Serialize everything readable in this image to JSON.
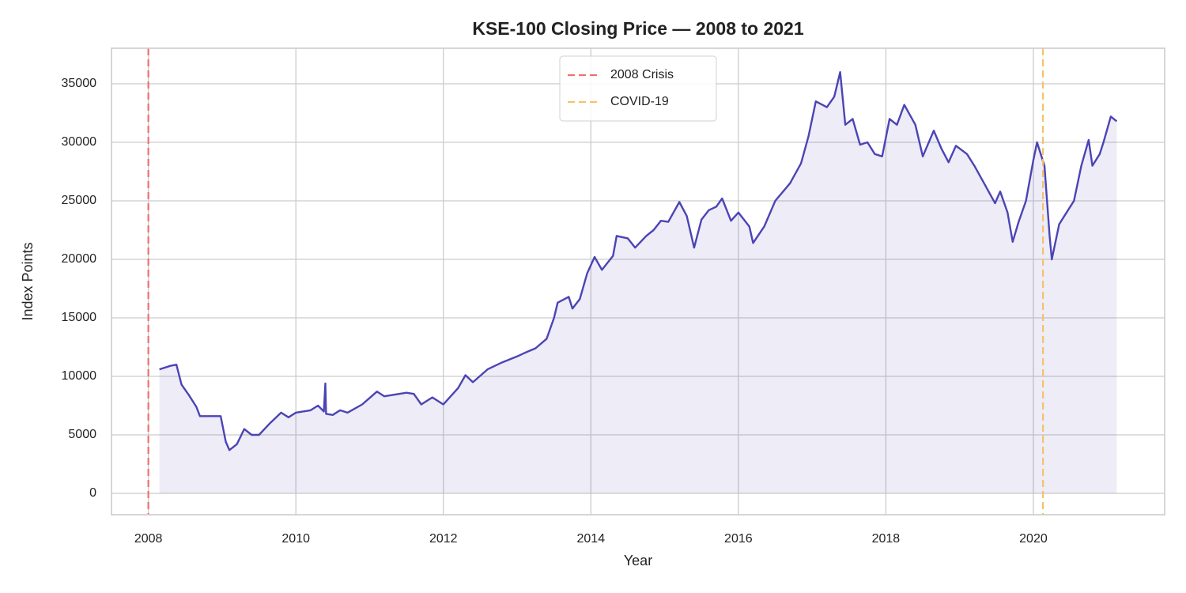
{
  "chart_data": {
    "type": "line",
    "title": "KSE-100 Closing Price — 2008 to 2021",
    "xlabel": "Year",
    "ylabel": "Index Points",
    "x": [
      2008.15,
      2008.3,
      2008.38,
      2008.45,
      2008.55,
      2008.65,
      2008.7,
      2008.98,
      2009.05,
      2009.1,
      2009.2,
      2009.3,
      2009.4,
      2009.5,
      2009.65,
      2009.8,
      2009.9,
      2010.0,
      2010.2,
      2010.3,
      2010.38,
      2010.4,
      2010.41,
      2010.5,
      2010.6,
      2010.7,
      2010.9,
      2011.1,
      2011.2,
      2011.5,
      2011.6,
      2011.7,
      2011.85,
      2012.0,
      2012.2,
      2012.3,
      2012.4,
      2012.6,
      2012.8,
      2013.0,
      2013.1,
      2013.25,
      2013.4,
      2013.5,
      2013.55,
      2013.7,
      2013.75,
      2013.85,
      2013.95,
      2014.05,
      2014.15,
      2014.3,
      2014.35,
      2014.5,
      2014.6,
      2014.75,
      2014.85,
      2014.95,
      2015.05,
      2015.2,
      2015.3,
      2015.4,
      2015.5,
      2015.6,
      2015.7,
      2015.78,
      2015.9,
      2016.0,
      2016.15,
      2016.2,
      2016.35,
      2016.5,
      2016.7,
      2016.85,
      2016.95,
      2017.05,
      2017.2,
      2017.3,
      2017.38,
      2017.45,
      2017.55,
      2017.65,
      2017.75,
      2017.85,
      2017.95,
      2018.05,
      2018.15,
      2018.25,
      2018.4,
      2018.5,
      2018.65,
      2018.75,
      2018.85,
      2018.95,
      2019.1,
      2019.2,
      2019.35,
      2019.48,
      2019.55,
      2019.65,
      2019.72,
      2019.8,
      2019.9,
      2020.0,
      2020.05,
      2020.15,
      2020.22,
      2020.25,
      2020.35,
      2020.45,
      2020.55,
      2020.65,
      2020.75,
      2020.8,
      2020.9,
      2020.95,
      2021.05,
      2021.13
    ],
    "series": [
      {
        "name": "KSE-100",
        "color": "#4b44b5",
        "values": [
          10600,
          10900,
          11000,
          9300,
          8400,
          7400,
          6600,
          6600,
          4400,
          3700,
          4200,
          5500,
          5000,
          5000,
          6000,
          6900,
          6500,
          6900,
          7100,
          7500,
          7000,
          9400,
          6800,
          6700,
          7100,
          6900,
          7600,
          8700,
          8300,
          8600,
          8500,
          7600,
          8200,
          7600,
          9000,
          10100,
          9500,
          10600,
          11200,
          11700,
          12000,
          12400,
          13200,
          15000,
          16300,
          16800,
          15800,
          16600,
          18800,
          20200,
          19100,
          20300,
          22000,
          21800,
          21000,
          22000,
          22500,
          23300,
          23200,
          24900,
          23700,
          21000,
          23400,
          24200,
          24500,
          25200,
          23300,
          24000,
          22800,
          21400,
          22800,
          25000,
          26500,
          28200,
          30500,
          33500,
          33000,
          33900,
          36000,
          31500,
          32000,
          29800,
          30000,
          29000,
          28800,
          32000,
          31500,
          33200,
          31500,
          28800,
          31000,
          29500,
          28300,
          29700,
          29000,
          28000,
          26300,
          24800,
          25800,
          24000,
          21500,
          23200,
          25000,
          28500,
          30000,
          28000,
          22000,
          20000,
          23000,
          24000,
          25000,
          28000,
          30200,
          28000,
          29000,
          30000,
          32200,
          31800
        ]
      }
    ],
    "reference_lines": [
      {
        "name": "2008 Crisis",
        "color": "#f07070",
        "x": 2008.0
      },
      {
        "name": "COVID-19",
        "color": "#f5c26b",
        "x": 2020.13
      }
    ],
    "xlim": [
      2007.5,
      2021.78
    ],
    "ylim": [
      -1825,
      38040
    ],
    "xticks": [
      2008,
      2010,
      2012,
      2014,
      2016,
      2018,
      2020
    ],
    "yticks": [
      0,
      5000,
      10000,
      15000,
      20000,
      25000,
      30000,
      35000
    ],
    "grid": true,
    "legend": "upper center"
  }
}
